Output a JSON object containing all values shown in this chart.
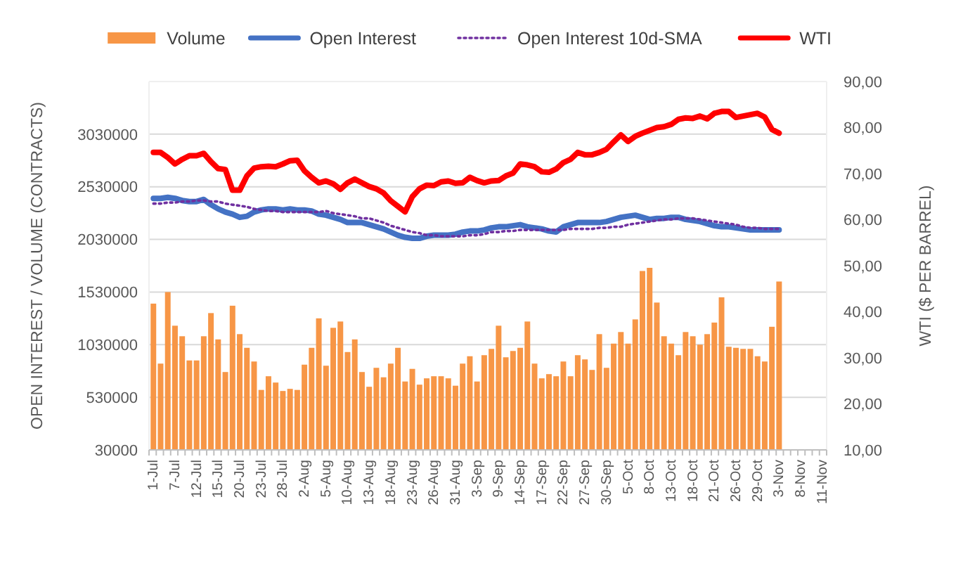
{
  "chart_data": {
    "type": "bar",
    "ylabel": "OPEN INTEREST / VOLUME (CONTRACTS)",
    "y2label": "WTI ($ PER BARREL)",
    "categories": [
      "1-Jul",
      null,
      null,
      "7-Jul",
      null,
      null,
      "12-Jul",
      null,
      null,
      "15-Jul",
      null,
      null,
      "20-Jul",
      null,
      null,
      "23-Jul",
      null,
      null,
      "28-Jul",
      null,
      null,
      "2-Aug",
      null,
      null,
      "5-Aug",
      null,
      null,
      "10-Aug",
      null,
      null,
      "13-Aug",
      null,
      null,
      "18-Aug",
      null,
      null,
      "23-Aug",
      null,
      null,
      "26-Aug",
      null,
      null,
      "31-Aug",
      null,
      null,
      "3-Sep",
      null,
      null,
      "9-Sep",
      null,
      null,
      "14-Sep",
      null,
      null,
      "17-Sep",
      null,
      null,
      "22-Sep",
      null,
      null,
      "27-Sep",
      null,
      null,
      "30-Sep",
      null,
      null,
      "5-Oct",
      null,
      null,
      "8-Oct",
      null,
      null,
      "13-Oct",
      null,
      null,
      "18-Oct",
      null,
      null,
      "21-Oct",
      null,
      null,
      "26-Oct",
      null,
      null,
      "29-Oct",
      null,
      null,
      "3-Nov",
      null,
      null,
      "8-Nov",
      null,
      null,
      "11-Nov"
    ],
    "series": [
      {
        "name": "Volume",
        "color": "#f79646",
        "values": [
          1420000,
          850000,
          1530000,
          1210000,
          1110000,
          880000,
          880000,
          1110000,
          1330000,
          1080000,
          770000,
          1400000,
          1130000,
          1000000,
          870000,
          600000,
          730000,
          670000,
          590000,
          610000,
          600000,
          840000,
          1000000,
          1280000,
          830000,
          1190000,
          1250000,
          960000,
          1080000,
          770000,
          630000,
          810000,
          720000,
          850000,
          1000000,
          680000,
          800000,
          650000,
          710000,
          730000,
          730000,
          710000,
          640000,
          850000,
          920000,
          680000,
          930000,
          990000,
          1210000,
          910000,
          970000,
          1000000,
          1250000,
          850000,
          710000,
          750000,
          730000,
          870000,
          730000,
          930000,
          890000,
          790000,
          1130000,
          810000,
          1040000,
          1150000,
          1040000,
          1270000,
          1730000,
          1760000,
          1430000,
          1110000,
          1040000,
          930000,
          1150000,
          1110000,
          1030000,
          1130000,
          1240000,
          1480000,
          1010000,
          1000000,
          990000,
          990000,
          920000,
          870000,
          1200000,
          1630000,
          null,
          null,
          null,
          null,
          null,
          null
        ]
      },
      {
        "name": "Open Interest",
        "type": "line",
        "color": "#4472c4",
        "values": [
          2420000,
          2420000,
          2430000,
          2420000,
          2400000,
          2390000,
          2390000,
          2410000,
          2360000,
          2320000,
          2290000,
          2270000,
          2240000,
          2250000,
          2290000,
          2310000,
          2320000,
          2320000,
          2310000,
          2320000,
          2310000,
          2310000,
          2300000,
          2270000,
          2260000,
          2240000,
          2220000,
          2190000,
          2190000,
          2190000,
          2170000,
          2150000,
          2130000,
          2100000,
          2070000,
          2050000,
          2040000,
          2040000,
          2060000,
          2070000,
          2070000,
          2070000,
          2080000,
          2100000,
          2110000,
          2110000,
          2120000,
          2140000,
          2150000,
          2150000,
          2160000,
          2170000,
          2150000,
          2140000,
          2130000,
          2110000,
          2100000,
          2150000,
          2170000,
          2190000,
          2190000,
          2190000,
          2190000,
          2200000,
          2220000,
          2240000,
          2250000,
          2260000,
          2240000,
          2220000,
          2230000,
          2230000,
          2240000,
          2240000,
          2220000,
          2210000,
          2200000,
          2180000,
          2160000,
          2150000,
          2150000,
          2140000,
          2130000,
          2120000,
          2120000,
          2120000,
          2120000,
          2120000,
          null,
          null,
          null,
          null,
          null,
          null
        ]
      },
      {
        "name": "Open Interest 10d-SMA",
        "type": "line",
        "line_style": "dotted",
        "color": "#7030a0",
        "values": [
          2370000,
          2370000,
          2380000,
          2380000,
          2390000,
          2390000,
          2400000,
          2400000,
          2390000,
          2390000,
          2370000,
          2360000,
          2350000,
          2340000,
          2320000,
          2310000,
          2300000,
          2300000,
          2290000,
          2290000,
          2290000,
          2290000,
          2290000,
          2290000,
          2300000,
          2280000,
          2270000,
          2260000,
          2250000,
          2230000,
          2230000,
          2210000,
          2190000,
          2160000,
          2140000,
          2120000,
          2100000,
          2090000,
          2070000,
          2070000,
          2060000,
          2060000,
          2060000,
          2060000,
          2070000,
          2070000,
          2080000,
          2100000,
          2100000,
          2110000,
          2110000,
          2120000,
          2120000,
          2120000,
          2120000,
          2120000,
          2120000,
          2120000,
          2130000,
          2130000,
          2130000,
          2130000,
          2140000,
          2140000,
          2150000,
          2150000,
          2170000,
          2180000,
          2190000,
          2200000,
          2210000,
          2220000,
          2220000,
          2230000,
          2230000,
          2230000,
          2220000,
          2210000,
          2200000,
          2190000,
          2180000,
          2170000,
          2150000,
          2140000,
          2140000,
          2130000,
          2130000,
          2130000,
          null,
          null,
          null,
          null,
          null,
          null
        ]
      },
      {
        "name": "WTI",
        "type": "line",
        "axis": "y2",
        "color": "#ff0000",
        "values": [
          74.6,
          74.6,
          73.5,
          72.1,
          73.1,
          73.9,
          73.9,
          74.4,
          72.6,
          71.1,
          70.9,
          66.4,
          66.4,
          69.5,
          71.2,
          71.5,
          71.6,
          71.5,
          72.1,
          72.8,
          72.9,
          70.6,
          69.2,
          68.0,
          68.4,
          67.8,
          66.6,
          68.0,
          68.8,
          68.0,
          67.2,
          66.7,
          65.8,
          64.1,
          62.9,
          61.7,
          65.0,
          66.7,
          67.5,
          67.4,
          68.2,
          68.4,
          67.9,
          68.0,
          69.2,
          68.5,
          68.0,
          68.4,
          68.5,
          69.5,
          70.1,
          72.1,
          71.9,
          71.5,
          70.4,
          70.3,
          71.0,
          72.4,
          73.1,
          74.6,
          74.1,
          74.1,
          74.6,
          75.3,
          76.9,
          78.4,
          77.0,
          78.1,
          78.8,
          79.4,
          80.0,
          80.2,
          80.7,
          81.8,
          82.1,
          82.0,
          82.5,
          81.9,
          83.1,
          83.5,
          83.5,
          82.2,
          82.5,
          82.8,
          83.1,
          82.3,
          79.6,
          78.8,
          null,
          null,
          null,
          null,
          null,
          null
        ]
      }
    ],
    "ylim": [
      30000,
      3530000
    ],
    "yticks": [
      30000,
      530000,
      1030000,
      1530000,
      2030000,
      2530000,
      3030000
    ],
    "y2lim": [
      10,
      90
    ],
    "y2ticks": [
      {
        "value": 10,
        "label": "10,00"
      },
      {
        "value": 20,
        "label": "20,00"
      },
      {
        "value": 30,
        "label": "30,00"
      },
      {
        "value": 40,
        "label": "40,00"
      },
      {
        "value": 50,
        "label": "50,00"
      },
      {
        "value": 60,
        "label": "60,00"
      },
      {
        "value": 70,
        "label": "70,00"
      },
      {
        "value": 80,
        "label": "80,00"
      },
      {
        "value": 90,
        "label": "90,00"
      }
    ],
    "grid": "y",
    "legend": "top"
  }
}
